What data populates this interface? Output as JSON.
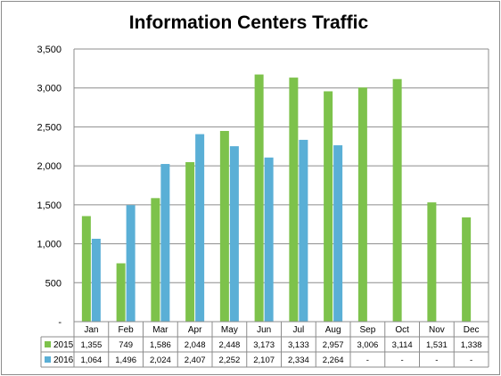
{
  "chart_data": {
    "type": "bar",
    "title": "Information Centers Traffic",
    "categories": [
      "Jan",
      "Feb",
      "Mar",
      "Apr",
      "May",
      "Jun",
      "Jul",
      "Aug",
      "Sep",
      "Oct",
      "Nov",
      "Dec"
    ],
    "ylim": [
      0,
      3500
    ],
    "yticks": [
      0,
      500,
      1000,
      1500,
      2000,
      2500,
      3000,
      3500
    ],
    "ytick_labels": [
      "-",
      "500",
      "1,000",
      "1,500",
      "2,000",
      "2,500",
      "3,000",
      "3,500"
    ],
    "grid": true,
    "legend": "data-table",
    "series": [
      {
        "name": "2015",
        "color": "#7dc24b",
        "values": [
          1355,
          749,
          1586,
          2048,
          2448,
          3173,
          3133,
          2957,
          3006,
          3114,
          1531,
          1338
        ],
        "labels": [
          "1,355",
          "749",
          "1,586",
          "2,048",
          "2,448",
          "3,173",
          "3,133",
          "2,957",
          "3,006",
          "3,114",
          "1,531",
          "1,338"
        ]
      },
      {
        "name": "2016",
        "color": "#5aafd6",
        "values": [
          1064,
          1496,
          2024,
          2407,
          2252,
          2107,
          2334,
          2264,
          null,
          null,
          null,
          null
        ],
        "labels": [
          "1,064",
          "1,496",
          "2,024",
          "2,407",
          "2,252",
          "2,107",
          "2,334",
          "2,264",
          "-",
          "-",
          "-",
          "-"
        ]
      }
    ]
  }
}
